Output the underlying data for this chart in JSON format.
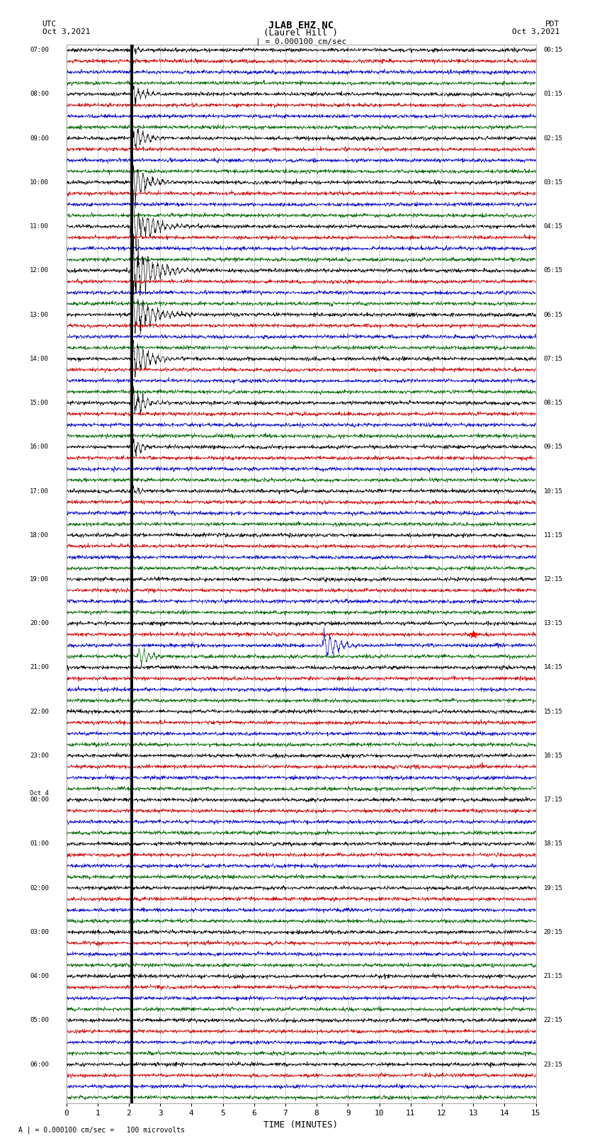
{
  "title_line1": "JLAB EHZ NC",
  "title_line2": "(Laurel Hill )",
  "scale_label": "| = 0.000100 cm/sec",
  "utc_label": "UTC",
  "utc_date": "Oct 3,2021",
  "pdt_label": "PDT",
  "pdt_date": "Oct 3,2021",
  "bottom_label": "A | = 0.000100 cm/sec =   100 microvolts",
  "xlabel": "TIME (MINUTES)",
  "bg_color": "#ffffff",
  "trace_colors": [
    "#000000",
    "#cc0000",
    "#0000cc",
    "#006600"
  ],
  "num_groups": 24,
  "minutes_per_row": 15,
  "row_labels_utc": [
    "07:00",
    "08:00",
    "09:00",
    "10:00",
    "11:00",
    "12:00",
    "13:00",
    "14:00",
    "15:00",
    "16:00",
    "17:00",
    "18:00",
    "19:00",
    "20:00",
    "21:00",
    "22:00",
    "23:00",
    "Oct 4\n00:00",
    "01:00",
    "02:00",
    "03:00",
    "04:00",
    "05:00",
    "06:00"
  ],
  "row_labels_pdt": [
    "00:15",
    "01:15",
    "02:15",
    "03:15",
    "04:15",
    "05:15",
    "06:15",
    "07:15",
    "08:15",
    "09:15",
    "10:15",
    "11:15",
    "12:15",
    "13:15",
    "14:15",
    "15:15",
    "16:15",
    "17:15",
    "18:15",
    "19:15",
    "20:15",
    "21:15",
    "22:15",
    "23:15"
  ],
  "earthquake_minute": 2.1,
  "earthquake_group": 5,
  "eq_peak_group": 4,
  "aftershock_group": 13,
  "aftershock_blue_minute": 8.2,
  "aftershock_green_minute": 2.3,
  "aftershock_red_star_minute": 13.0,
  "small_event_group": 8,
  "small_event_minute": 2.2
}
